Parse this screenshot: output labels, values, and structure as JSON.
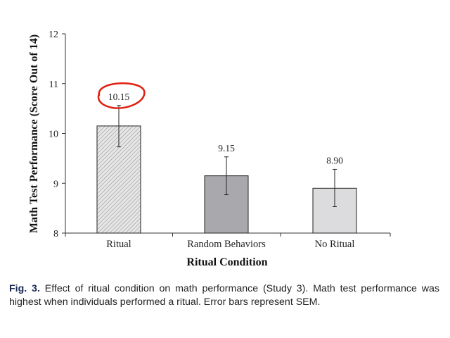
{
  "chart_data": {
    "type": "bar",
    "categories": [
      "Ritual",
      "Random Behaviors",
      "No Ritual"
    ],
    "values": [
      10.15,
      9.15,
      8.9
    ],
    "data_labels": [
      "10.15",
      "9.15",
      "8.90"
    ],
    "error_bars": [
      {
        "low": 9.73,
        "high": 10.56
      },
      {
        "low": 8.77,
        "high": 9.53
      },
      {
        "low": 8.53,
        "high": 9.28
      }
    ],
    "bar_colors": [
      "#d8d8d8",
      "#a9a9ad",
      "#dcdcde"
    ],
    "hatched": [
      true,
      false,
      false
    ],
    "highlight": {
      "target": "Ritual",
      "color": "#e02010",
      "shape": "hand-drawn circle around data label"
    },
    "xlabel": "Ritual Condition",
    "ylabel": "Math Test Performance (Score Out of 14)",
    "ylim": [
      8,
      12
    ],
    "yticks": [
      8,
      9,
      10,
      11,
      12
    ],
    "grid": false,
    "legend": "none"
  },
  "caption": {
    "fig_label": "Fig. 3.",
    "text": " Effect of ritual condition on math performance (Study 3). Math test performance was highest when individuals performed a ritual. Error bars represent SEM."
  }
}
